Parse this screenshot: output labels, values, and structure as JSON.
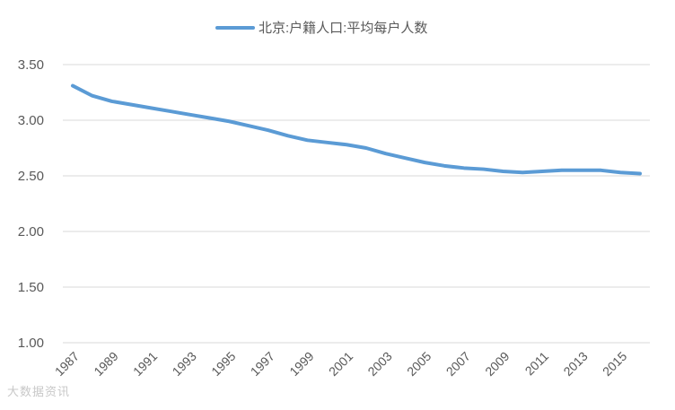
{
  "chart_data": {
    "type": "line",
    "title": "",
    "xlabel": "",
    "ylabel": "",
    "legend_position": "top-center",
    "grid": true,
    "ylim": [
      1.0,
      3.5
    ],
    "y_ticks": [
      "1.00",
      "1.50",
      "2.00",
      "2.50",
      "3.00",
      "3.50"
    ],
    "x_tick_labels": [
      "1987",
      "1989",
      "1991",
      "1993",
      "1995",
      "1997",
      "1999",
      "2001",
      "2003",
      "2005",
      "2007",
      "2009",
      "2011",
      "2013",
      "2015"
    ],
    "x": [
      1987,
      1988,
      1989,
      1990,
      1991,
      1992,
      1993,
      1994,
      1995,
      1996,
      1997,
      1998,
      1999,
      2000,
      2001,
      2002,
      2003,
      2004,
      2005,
      2006,
      2007,
      2008,
      2009,
      2010,
      2011,
      2012,
      2013,
      2014,
      2015,
      2016
    ],
    "series": [
      {
        "name": "北京:户籍人口:平均每户人数",
        "color": "#5b9bd5",
        "values": [
          3.31,
          3.22,
          3.17,
          3.14,
          3.11,
          3.08,
          3.05,
          3.02,
          2.99,
          2.95,
          2.91,
          2.86,
          2.82,
          2.8,
          2.78,
          2.75,
          2.7,
          2.66,
          2.62,
          2.59,
          2.57,
          2.56,
          2.54,
          2.53,
          2.54,
          2.55,
          2.55,
          2.55,
          2.53,
          2.52
        ]
      }
    ]
  },
  "watermark": "大数据资讯"
}
